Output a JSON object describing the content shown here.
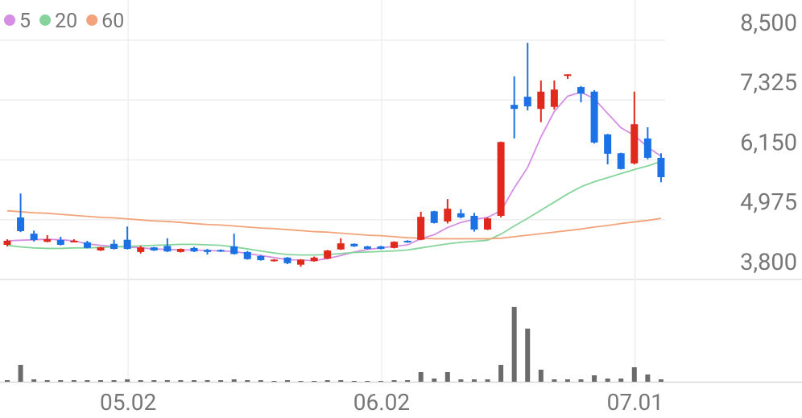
{
  "chart_data": {
    "type": "candlestick",
    "categories": [
      null,
      null,
      null,
      null,
      null,
      null,
      null,
      null,
      null,
      "05.02",
      null,
      null,
      null,
      null,
      null,
      null,
      null,
      null,
      null,
      null,
      null,
      null,
      null,
      null,
      null,
      null,
      null,
      null,
      "06.02",
      null,
      null,
      null,
      null,
      null,
      null,
      null,
      null,
      null,
      null,
      null,
      null,
      null,
      null,
      null,
      null,
      null,
      null,
      "07.01",
      null,
      null
    ],
    "candles": {
      "up_color": "#e0281c",
      "down_color": "#1c72e4",
      "open": [
        4480,
        5018,
        4700,
        4540,
        4575,
        4540,
        4530,
        4370,
        4500,
        4580,
        4340,
        4430,
        4460,
        4340,
        4420,
        4380,
        4380,
        4450,
        4340,
        4260,
        4160,
        4230,
        4090,
        4160,
        4210,
        4390,
        4500,
        4450,
        4450,
        4420,
        4560,
        4580,
        5140,
        4940,
        5100,
        5050,
        4780,
        5050,
        7230,
        7390,
        7150,
        7190,
        7800,
        7580,
        7490,
        6650,
        6280,
        6080,
        6570,
        6190
      ],
      "high": [
        4590,
        5490,
        4760,
        4670,
        4640,
        4590,
        4560,
        4440,
        4580,
        4840,
        4460,
        4440,
        4610,
        4410,
        4440,
        4400,
        4390,
        4700,
        4360,
        4280,
        4200,
        4240,
        4200,
        4250,
        4380,
        4610,
        4510,
        4460,
        4460,
        4550,
        4570,
        5130,
        5150,
        5380,
        5180,
        5110,
        5020,
        6510,
        7790,
        8450,
        7710,
        7710,
        7830,
        7600,
        7520,
        6660,
        6290,
        7490,
        6790,
        6280
      ],
      "low": [
        4450,
        4730,
        4545,
        4530,
        4470,
        4530,
        4410,
        4360,
        4390,
        4390,
        4310,
        4360,
        4340,
        4330,
        4340,
        4290,
        4340,
        4290,
        4190,
        4170,
        4150,
        4100,
        4050,
        4150,
        4200,
        4380,
        4440,
        4390,
        4390,
        4410,
        4520,
        4570,
        4900,
        4900,
        5000,
        4740,
        4770,
        5020,
        6570,
        7120,
        6890,
        7140,
        7740,
        7280,
        6470,
        6060,
        5960,
        6060,
        6160,
        5710
      ],
      "close": [
        4560,
        4750,
        4575,
        4590,
        4480,
        4560,
        4420,
        4430,
        4400,
        4400,
        4430,
        4370,
        4350,
        4400,
        4350,
        4340,
        4350,
        4300,
        4200,
        4180,
        4190,
        4120,
        4190,
        4230,
        4370,
        4510,
        4450,
        4400,
        4400,
        4540,
        4530,
        5030,
        4910,
        5190,
        5020,
        4780,
        5000,
        6500,
        7150,
        7200,
        7490,
        7530,
        7830,
        7450,
        6490,
        6270,
        5970,
        6850,
        6190,
        5810
      ]
    },
    "moving_averages": [
      {
        "name": "5",
        "color": "#d48fe4",
        "values": [
          4560,
          4570,
          4580,
          4590,
          4580,
          4560,
          4500,
          4470,
          4450,
          4440,
          4420,
          4400,
          4390,
          4380,
          4380,
          4370,
          4360,
          4350,
          4310,
          4270,
          4230,
          4190,
          4180,
          4170,
          4210,
          4270,
          4340,
          4390,
          4420,
          4450,
          4480,
          4600,
          4680,
          4820,
          4920,
          4980,
          5020,
          5150,
          5600,
          6000,
          6600,
          7100,
          7400,
          7480,
          7350,
          7060,
          6780,
          6630,
          6400,
          6220
        ]
      },
      {
        "name": "20",
        "color": "#86d49c",
        "values": [
          4470,
          4440,
          4420,
          4410,
          4410,
          4420,
          4420,
          4430,
          4440,
          4450,
          4460,
          4470,
          4480,
          4490,
          4490,
          4480,
          4470,
          4440,
          4400,
          4360,
          4320,
          4290,
          4280,
          4280,
          4290,
          4310,
          4330,
          4340,
          4350,
          4360,
          4380,
          4420,
          4460,
          4500,
          4530,
          4550,
          4570,
          4690,
          4850,
          5000,
          5160,
          5320,
          5480,
          5620,
          5720,
          5800,
          5880,
          5960,
          6030,
          6120
        ]
      },
      {
        "name": "60",
        "color": "#f2a37a",
        "values": [
          5150,
          5130,
          5110,
          5100,
          5080,
          5060,
          5040,
          5020,
          5010,
          4990,
          4970,
          4950,
          4940,
          4920,
          4900,
          4880,
          4870,
          4850,
          4830,
          4810,
          4800,
          4780,
          4760,
          4740,
          4730,
          4710,
          4690,
          4670,
          4660,
          4640,
          4620,
          4610,
          4600,
          4600,
          4600,
          4600,
          4600,
          4610,
          4640,
          4670,
          4700,
          4730,
          4760,
          4790,
          4830,
          4860,
          4900,
          4930,
          4960,
          5000
        ]
      }
    ],
    "volume": {
      "color": "#6b6b6b",
      "ylim": [
        0,
        130
      ],
      "values": [
        2,
        21,
        3,
        2,
        2,
        2,
        2,
        2,
        2,
        3,
        2,
        2,
        2,
        2,
        2,
        2,
        2,
        3,
        2,
        2,
        1,
        2,
        1,
        1,
        2,
        2,
        1,
        1,
        1,
        2,
        2,
        12,
        4,
        12,
        3,
        3,
        3,
        21,
        93,
        66,
        15,
        3,
        3,
        3,
        8,
        4,
        4,
        18,
        9,
        3
      ]
    },
    "ylim": [
      3800,
      9290
    ],
    "yticks": [
      {
        "value": 3800,
        "label": "3,800"
      },
      {
        "value": 4975,
        "label": "4,975"
      },
      {
        "value": 6150,
        "label": "6,150"
      },
      {
        "value": 7325,
        "label": "7,325"
      },
      {
        "value": 8500,
        "label": "8,500"
      }
    ],
    "grid": true
  }
}
